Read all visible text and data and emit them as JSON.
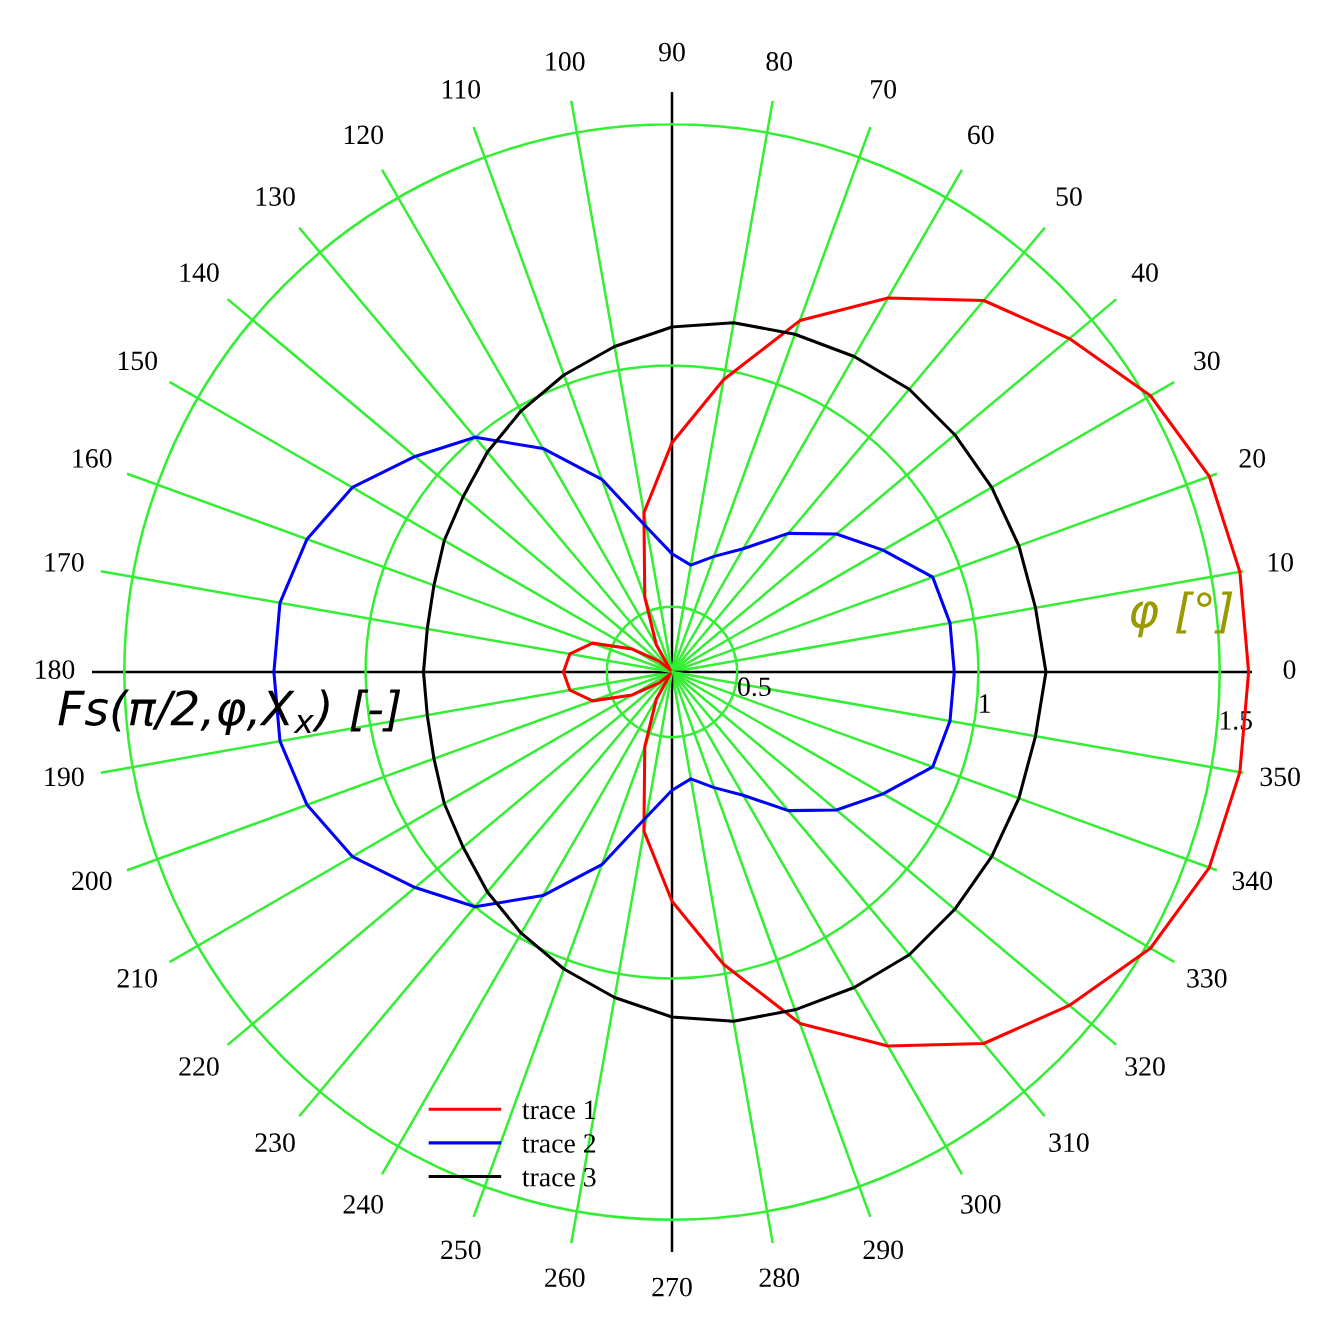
{
  "chart_data": {
    "type": "radar",
    "categories": [
      "90",
      "80",
      "70",
      "60",
      "50",
      "40",
      "30",
      "20",
      "10",
      "0",
      "350",
      "340",
      "330",
      "320",
      "310",
      "300",
      "290",
      "280",
      "270",
      "260",
      "250",
      "240",
      "230",
      "220",
      "210",
      "200",
      "190",
      "180",
      "170",
      "160",
      "150",
      "140",
      "130",
      "120",
      "110",
      "100"
    ],
    "ylim": [
      0.365,
      1.567
    ],
    "yticks": [
      0.5,
      1,
      1.5
    ],
    "xlabel": "φ [°]",
    "ylabel": "Fs(π/2,φ,X$_{x}$) [-]",
    "grid": true,
    "legend": "bottom left",
    "series": [
      {
        "name": "trace 1",
        "color": "#ff0000",
        "values": [
          0.84,
          0.98,
          1.14,
          1.26,
          1.37,
          1.44,
          1.51,
          1.55,
          1.56,
          1.56,
          1.56,
          1.55,
          1.51,
          1.44,
          1.37,
          1.26,
          1.14,
          0.98,
          0.84,
          0.7,
          0.53,
          0.43,
          0.37,
          0.4,
          0.46,
          0.54,
          0.58,
          0.59,
          0.58,
          0.54,
          0.46,
          0.4,
          0.37,
          0.43,
          0.53,
          0.7
        ]
      },
      {
        "name": "trace 2",
        "color": "#0000ff",
        "values": [
          0.61,
          0.59,
          0.62,
          0.66,
          0.74,
          0.81,
          0.87,
          0.94,
          0.95,
          0.95,
          0.95,
          0.94,
          0.87,
          0.81,
          0.74,
          0.66,
          0.62,
          0.59,
          0.61,
          0.67,
          0.79,
          0.9,
          1.0,
          1.06,
          1.13,
          1.17,
          1.19,
          1.19,
          1.19,
          1.17,
          1.13,
          1.06,
          1.0,
          0.9,
          0.79,
          0.67
        ]
      },
      {
        "name": "trace 3",
        "color": "#000000",
        "values": [
          1.08,
          1.1,
          1.11,
          1.12,
          1.13,
          1.13,
          1.13,
          1.13,
          1.13,
          1.14,
          1.13,
          1.13,
          1.13,
          1.13,
          1.13,
          1.12,
          1.11,
          1.1,
          1.08,
          1.05,
          1.02,
          0.99,
          0.96,
          0.93,
          0.91,
          0.89,
          0.88,
          0.88,
          0.88,
          0.89,
          0.91,
          0.93,
          0.96,
          0.99,
          1.02,
          1.05
        ]
      }
    ]
  }
}
